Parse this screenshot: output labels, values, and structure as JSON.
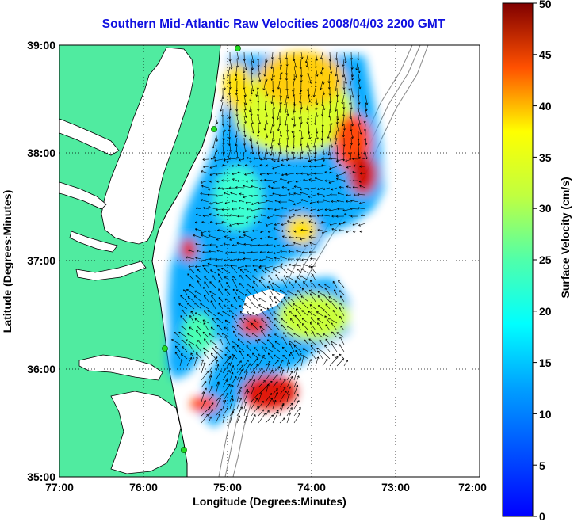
{
  "title": "Southern Mid-Atlantic Raw Velocities 2008/04/03 2200 GMT",
  "x_axis": {
    "label": "Longitude (Degrees:Minutes)",
    "ticks": [
      "77:00",
      "76:00",
      "75:00",
      "74:00",
      "73:00",
      "72:00"
    ]
  },
  "y_axis": {
    "label": "Latitude (Degrees:Minutes)",
    "ticks": [
      "39:00",
      "38:00",
      "37:00",
      "36:00",
      "35:00"
    ]
  },
  "colorbar": {
    "label": "Surface Velocity (cm/s)",
    "ticks": [
      "50",
      "45",
      "40",
      "35",
      "30",
      "25",
      "20",
      "15",
      "10",
      "5",
      "0"
    ],
    "min": 0,
    "max": 50,
    "colormap": "jet"
  },
  "colors": {
    "title": "#1010e0",
    "land": "#50eba0",
    "water": "#ffffff",
    "station": "#22dd22",
    "bathymetry": "#888888"
  },
  "grid": "dotted",
  "map_extent": {
    "lon": [
      -77,
      -72
    ],
    "lat": [
      35,
      39
    ]
  }
}
